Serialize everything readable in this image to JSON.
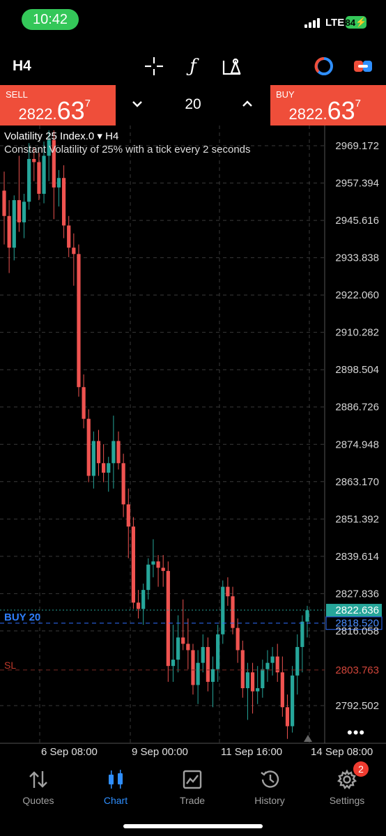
{
  "status_bar": {
    "time": "10:42",
    "network": "LTE",
    "battery": "84"
  },
  "toolbar": {
    "timeframe": "H4",
    "icons": [
      "crosshair-icon",
      "function-icon",
      "objects-icon",
      "indicator-toggle-icon",
      "account-switch-icon"
    ]
  },
  "order_bar": {
    "sell": {
      "label": "SELL",
      "price_prefix": "2822.",
      "price_main": "63",
      "price_sup": "7"
    },
    "buy": {
      "label": "BUY",
      "price_prefix": "2822.",
      "price_main": "63",
      "price_sup": "7"
    },
    "volume": "20"
  },
  "chart_info": {
    "symbol": "Volatility 25 Index.0",
    "timeframe": "H4",
    "description": "Constant Volatility of 25% with a tick every 2 seconds"
  },
  "chart_data": {
    "type": "candlestick",
    "y_ticks": [
      "2969.172",
      "2957.394",
      "2945.616",
      "2933.838",
      "2922.060",
      "2910.282",
      "2898.504",
      "2886.726",
      "2874.948",
      "2863.170",
      "2851.392",
      "2839.614",
      "2827.836",
      "2816.058",
      "2792.502"
    ],
    "x_ticks": [
      "6 Sep 08:00",
      "9 Sep 00:00",
      "11 Sep 16:00",
      "14 Sep 08:00"
    ],
    "current_price": "2822.636",
    "buy_position": {
      "label": "BUY 20",
      "price": "2818.520"
    },
    "stop_loss": {
      "label": "SL",
      "price": "2803.763"
    },
    "candles": [
      [
        2955.0,
        2961.0,
        2938.0,
        2947.0
      ],
      [
        2947.0,
        2952.0,
        2929.0,
        2937.0
      ],
      [
        2937.0,
        2953.5,
        2933.0,
        2952.0
      ],
      [
        2952.0,
        2966.0,
        2942.0,
        2945.0
      ],
      [
        2945.0,
        2954.0,
        2940.0,
        2951.5
      ],
      [
        2951.5,
        2970.0,
        2949.0,
        2965.0
      ],
      [
        2965.0,
        2968.5,
        2958.0,
        2964.0
      ],
      [
        2964.0,
        2967.0,
        2952.0,
        2954.0
      ],
      [
        2954.0,
        2970.5,
        2951.0,
        2966.0
      ],
      [
        2966.0,
        2974.0,
        2958.0,
        2971.0
      ],
      [
        2971.0,
        2974.0,
        2946.0,
        2956.0
      ],
      [
        2956.0,
        2961.5,
        2950.0,
        2959.0
      ],
      [
        2959.0,
        2963.0,
        2940.0,
        2944.0
      ],
      [
        2944.0,
        2947.0,
        2934.0,
        2937.0
      ],
      [
        2937.0,
        2941.5,
        2925.0,
        2935.0
      ],
      [
        2935.0,
        2938.0,
        2890.0,
        2893.0
      ],
      [
        2893.0,
        2897.0,
        2880.0,
        2883.0
      ],
      [
        2883.0,
        2886.0,
        2863.0,
        2865.0
      ],
      [
        2865.0,
        2879.0,
        2861.0,
        2876.0
      ],
      [
        2876.0,
        2879.5,
        2865.0,
        2869.0
      ],
      [
        2869.0,
        2875.0,
        2863.0,
        2866.0
      ],
      [
        2866.0,
        2871.0,
        2860.0,
        2869.0
      ],
      [
        2869.0,
        2884.0,
        2861.0,
        2876.0
      ],
      [
        2876.0,
        2879.0,
        2867.0,
        2869.0
      ],
      [
        2869.0,
        2872.0,
        2852.0,
        2856.0
      ],
      [
        2856.0,
        2861.0,
        2839.0,
        2849.0
      ],
      [
        2849.0,
        2852.0,
        2823.0,
        2825.0
      ],
      [
        2825.0,
        2829.0,
        2820.0,
        2823.0
      ],
      [
        2823.0,
        2831.0,
        2818.0,
        2829.0
      ],
      [
        2829.0,
        2839.0,
        2826.0,
        2837.0
      ],
      [
        2837.0,
        2845.0,
        2833.0,
        2838.0
      ],
      [
        2838.0,
        2840.0,
        2830.0,
        2836.0
      ],
      [
        2836.0,
        2840.0,
        2830.0,
        2835.0
      ],
      [
        2835.0,
        2838.0,
        2800.0,
        2805.0
      ],
      [
        2805.0,
        2818.0,
        2800.0,
        2807.0
      ],
      [
        2807.0,
        2821.0,
        2803.0,
        2814.0
      ],
      [
        2814.0,
        2826.0,
        2810.0,
        2812.0
      ],
      [
        2812.0,
        2820.0,
        2804.0,
        2810.0
      ],
      [
        2810.0,
        2812.0,
        2796.0,
        2799.0
      ],
      [
        2799.0,
        2810.0,
        2793.0,
        2806.0
      ],
      [
        2806.0,
        2815.0,
        2803.0,
        2811.0
      ],
      [
        2811.0,
        2814.0,
        2797.0,
        2800.0
      ],
      [
        2800.0,
        2808.0,
        2792.0,
        2804.0
      ],
      [
        2804.0,
        2818.0,
        2800.0,
        2815.0
      ],
      [
        2815.0,
        2832.0,
        2812.0,
        2830.0
      ],
      [
        2830.0,
        2833.0,
        2824.0,
        2827.0
      ],
      [
        2827.0,
        2830.0,
        2815.0,
        2817.0
      ],
      [
        2817.0,
        2820.0,
        2806.0,
        2810.0
      ],
      [
        2810.0,
        2813.0,
        2795.0,
        2798.0
      ],
      [
        2798.0,
        2806.0,
        2788.0,
        2803.0
      ],
      [
        2803.0,
        2806.0,
        2790.0,
        2797.0
      ],
      [
        2797.0,
        2805.0,
        2793.0,
        2798.0
      ],
      [
        2798.0,
        2807.0,
        2795.0,
        2804.0
      ],
      [
        2804.0,
        2810.0,
        2800.0,
        2806.0
      ],
      [
        2806.0,
        2811.0,
        2802.0,
        2808.0
      ],
      [
        2808.0,
        2812.0,
        2800.0,
        2803.0
      ],
      [
        2803.0,
        2808.0,
        2789.0,
        2792.0
      ],
      [
        2792.0,
        2796.0,
        2782.0,
        2786.0
      ],
      [
        2786.0,
        2805.0,
        2784.0,
        2802.0
      ],
      [
        2802.0,
        2815.0,
        2796.0,
        2811.0
      ],
      [
        2811.0,
        2821.0,
        2803.0,
        2819.0
      ],
      [
        2819.0,
        2824.0,
        2814.0,
        2822.6
      ]
    ]
  },
  "nav": [
    {
      "label": "Quotes",
      "icon": "quotes-icon",
      "active": false
    },
    {
      "label": "Chart",
      "icon": "chart-icon",
      "active": true
    },
    {
      "label": "Trade",
      "icon": "trade-icon",
      "active": false
    },
    {
      "label": "History",
      "icon": "history-icon",
      "active": false
    },
    {
      "label": "Settings",
      "icon": "settings-icon",
      "active": false,
      "badge": "2"
    }
  ],
  "colors": {
    "bull": "#26a69a",
    "bear": "#ef5350",
    "accent": "#2f8fff",
    "order_bar": "#ef4e3a"
  }
}
